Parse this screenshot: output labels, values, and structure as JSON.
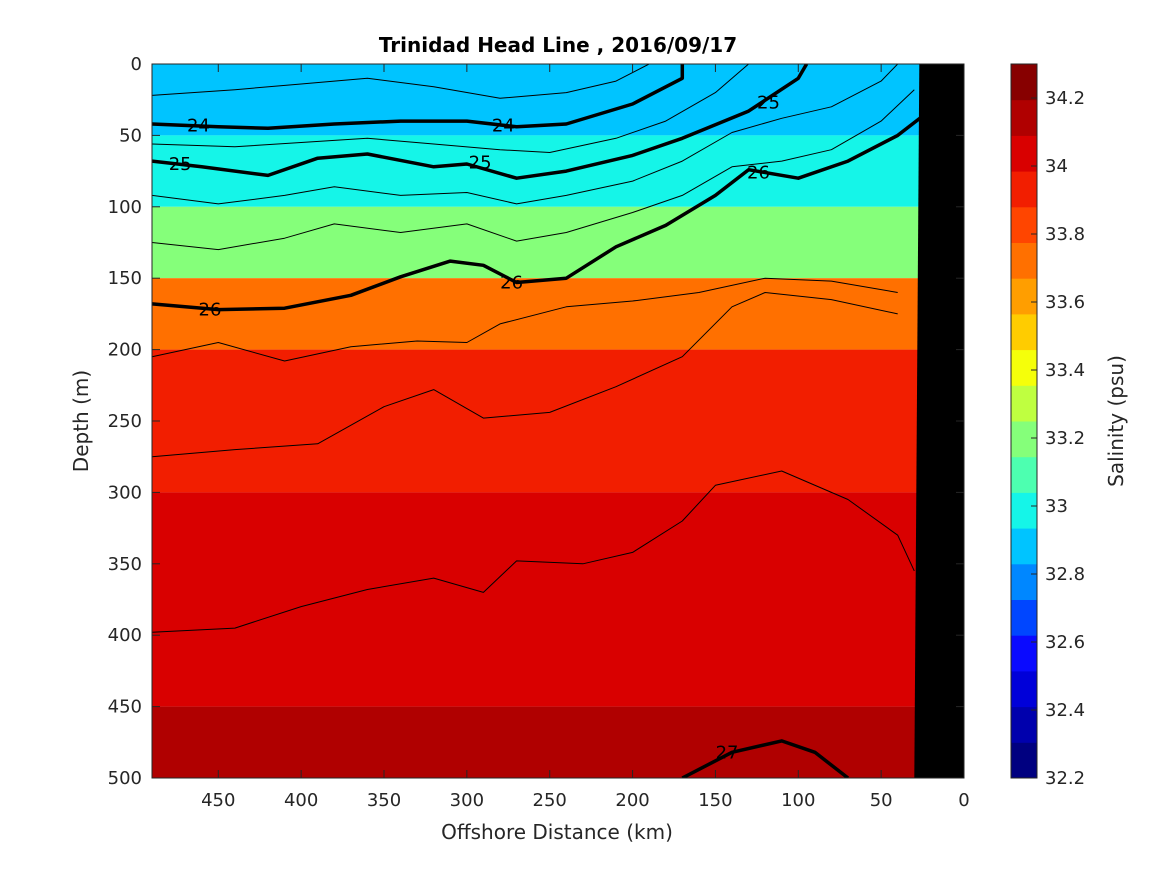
{
  "chart_data": {
    "type": "heatmap",
    "title": "Trinidad Head Line , 2016/09/17",
    "xlabel": "Offshore Distance (km)",
    "ylabel": "Depth (m)",
    "xlim": [
      490,
      0
    ],
    "ylim": [
      0,
      500
    ],
    "x_reversed": true,
    "y_reversed": true,
    "xticks": [
      450,
      400,
      350,
      300,
      250,
      200,
      150,
      100,
      50,
      0
    ],
    "yticks": [
      0,
      50,
      100,
      150,
      200,
      250,
      300,
      350,
      400,
      450,
      500
    ],
    "colorbar": {
      "label": "Salinity (psu)",
      "range": [
        32.2,
        34.3
      ],
      "ticks": [
        32.2,
        32.4,
        32.6,
        32.8,
        33,
        33.2,
        33.4,
        33.6,
        33.8,
        34,
        34.2
      ],
      "colors": [
        "#000080",
        "#0000ad",
        "#0000d9",
        "#0a0aff",
        "#0046ff",
        "#0087ff",
        "#00c4ff",
        "#15f5e8",
        "#4dffb0",
        "#85ff7a",
        "#bfff40",
        "#f5ff0a",
        "#ffcc00",
        "#ff9e00",
        "#ff7000",
        "#ff4500",
        "#f21e00",
        "#d90000",
        "#b00000",
        "#870000"
      ]
    },
    "salinity_bands": [
      {
        "depth": 0,
        "value": 32.9
      },
      {
        "depth": 50,
        "value": 33.0
      },
      {
        "depth": 100,
        "value": 33.2
      },
      {
        "depth": 150,
        "value": 33.7
      },
      {
        "depth": 200,
        "value": 33.9
      },
      {
        "depth": 300,
        "value": 34.05
      },
      {
        "depth": 450,
        "value": 34.15
      }
    ],
    "density_contours": [
      {
        "level": "24",
        "bold": true,
        "points": [
          [
            490,
            42
          ],
          [
            450,
            44
          ],
          [
            420,
            45
          ],
          [
            380,
            42
          ],
          [
            340,
            40
          ],
          [
            300,
            40
          ],
          [
            270,
            44
          ],
          [
            240,
            42
          ],
          [
            200,
            28
          ],
          [
            170,
            10
          ],
          [
            170,
            0
          ]
        ]
      },
      {
        "level": "25",
        "bold": true,
        "points": [
          [
            490,
            68
          ],
          [
            460,
            72
          ],
          [
            420,
            78
          ],
          [
            390,
            66
          ],
          [
            360,
            63
          ],
          [
            320,
            72
          ],
          [
            300,
            70
          ],
          [
            270,
            80
          ],
          [
            240,
            75
          ],
          [
            200,
            64
          ],
          [
            170,
            52
          ],
          [
            130,
            33
          ],
          [
            100,
            10
          ],
          [
            95,
            0
          ]
        ]
      },
      {
        "level": "26",
        "bold": true,
        "points": [
          [
            490,
            168
          ],
          [
            450,
            172
          ],
          [
            410,
            171
          ],
          [
            370,
            162
          ],
          [
            340,
            149
          ],
          [
            310,
            138
          ],
          [
            290,
            141
          ],
          [
            270,
            153
          ],
          [
            240,
            150
          ],
          [
            210,
            128
          ],
          [
            180,
            113
          ],
          [
            150,
            92
          ],
          [
            130,
            74
          ],
          [
            100,
            80
          ],
          [
            70,
            68
          ],
          [
            40,
            50
          ],
          [
            20,
            32
          ]
        ]
      },
      {
        "level": "27",
        "bold": true,
        "points": [
          [
            170,
            500
          ],
          [
            140,
            482
          ],
          [
            110,
            474
          ],
          [
            90,
            482
          ],
          [
            70,
            500
          ]
        ]
      },
      {
        "level": "",
        "bold": false,
        "points": [
          [
            490,
            205
          ],
          [
            450,
            195
          ],
          [
            410,
            208
          ],
          [
            370,
            198
          ],
          [
            330,
            194
          ],
          [
            300,
            195
          ],
          [
            280,
            182
          ],
          [
            240,
            170
          ],
          [
            200,
            166
          ],
          [
            160,
            160
          ],
          [
            120,
            150
          ],
          [
            80,
            152
          ],
          [
            40,
            160
          ]
        ]
      },
      {
        "level": "",
        "bold": false,
        "points": [
          [
            490,
            275
          ],
          [
            440,
            270
          ],
          [
            390,
            266
          ],
          [
            350,
            240
          ],
          [
            320,
            228
          ],
          [
            290,
            248
          ],
          [
            250,
            244
          ],
          [
            210,
            226
          ],
          [
            170,
            205
          ],
          [
            140,
            170
          ],
          [
            120,
            160
          ],
          [
            80,
            165
          ],
          [
            40,
            175
          ]
        ]
      },
      {
        "level": "",
        "bold": false,
        "points": [
          [
            490,
            398
          ],
          [
            440,
            395
          ],
          [
            400,
            380
          ],
          [
            360,
            368
          ],
          [
            320,
            360
          ],
          [
            290,
            370
          ],
          [
            270,
            348
          ],
          [
            230,
            350
          ],
          [
            200,
            342
          ],
          [
            170,
            320
          ],
          [
            150,
            295
          ],
          [
            110,
            285
          ],
          [
            70,
            305
          ],
          [
            40,
            330
          ],
          [
            30,
            355
          ]
        ]
      },
      {
        "level": "",
        "bold": false,
        "points": [
          [
            490,
            22
          ],
          [
            440,
            18
          ],
          [
            400,
            14
          ],
          [
            360,
            10
          ],
          [
            320,
            16
          ],
          [
            280,
            24
          ],
          [
            240,
            20
          ],
          [
            210,
            12
          ],
          [
            190,
            0
          ]
        ]
      },
      {
        "level": "",
        "bold": false,
        "points": [
          [
            490,
            56
          ],
          [
            440,
            58
          ],
          [
            400,
            55
          ],
          [
            360,
            52
          ],
          [
            320,
            56
          ],
          [
            280,
            60
          ],
          [
            250,
            62
          ],
          [
            210,
            52
          ],
          [
            180,
            40
          ],
          [
            150,
            20
          ],
          [
            130,
            0
          ]
        ]
      },
      {
        "level": "",
        "bold": false,
        "points": [
          [
            490,
            92
          ],
          [
            450,
            98
          ],
          [
            410,
            92
          ],
          [
            380,
            86
          ],
          [
            340,
            92
          ],
          [
            300,
            90
          ],
          [
            270,
            98
          ],
          [
            240,
            92
          ],
          [
            200,
            82
          ],
          [
            170,
            68
          ],
          [
            140,
            48
          ],
          [
            110,
            38
          ],
          [
            80,
            30
          ],
          [
            50,
            12
          ],
          [
            40,
            0
          ]
        ]
      },
      {
        "level": "",
        "bold": false,
        "points": [
          [
            490,
            125
          ],
          [
            450,
            130
          ],
          [
            410,
            122
          ],
          [
            380,
            112
          ],
          [
            340,
            118
          ],
          [
            300,
            112
          ],
          [
            270,
            124
          ],
          [
            240,
            118
          ],
          [
            200,
            104
          ],
          [
            170,
            92
          ],
          [
            140,
            72
          ],
          [
            110,
            68
          ],
          [
            80,
            60
          ],
          [
            50,
            40
          ],
          [
            30,
            18
          ]
        ]
      }
    ],
    "contour_labels": [
      {
        "text": "24",
        "x": 462,
        "depth": 43
      },
      {
        "text": "24",
        "x": 278,
        "depth": 43
      },
      {
        "text": "25",
        "x": 118,
        "depth": 27
      },
      {
        "text": "25",
        "x": 473,
        "depth": 70
      },
      {
        "text": "25",
        "x": 292,
        "depth": 69
      },
      {
        "text": "26",
        "x": 124,
        "depth": 76
      },
      {
        "text": "26",
        "x": 273,
        "depth": 153
      },
      {
        "text": "26",
        "x": 455,
        "depth": 172
      },
      {
        "text": "27",
        "x": 143,
        "depth": 482
      }
    ],
    "shelf_bathymetry": [
      [
        27,
        0
      ],
      [
        30,
        500
      ],
      [
        0,
        500
      ],
      [
        0,
        0
      ]
    ]
  }
}
